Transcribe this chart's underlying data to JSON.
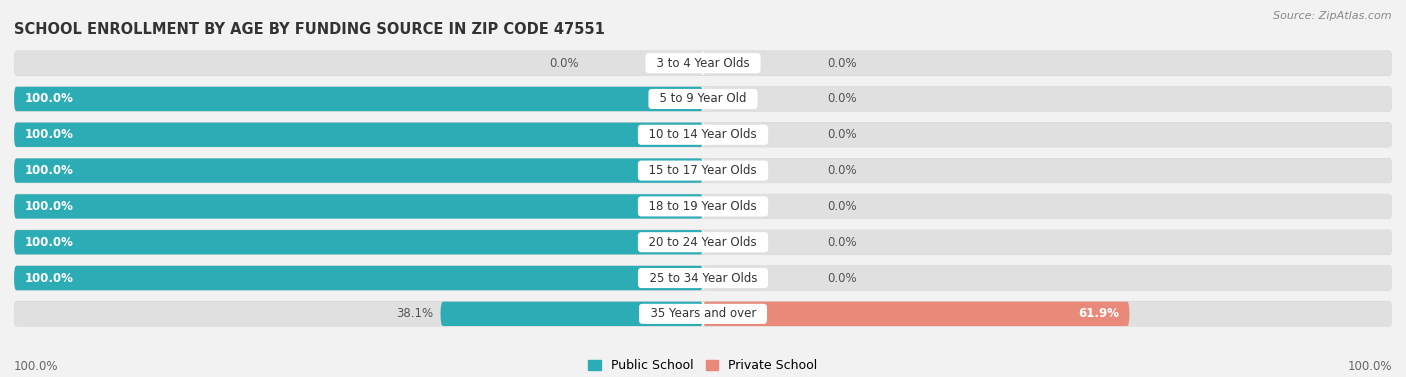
{
  "title": "SCHOOL ENROLLMENT BY AGE BY FUNDING SOURCE IN ZIP CODE 47551",
  "source": "Source: ZipAtlas.com",
  "categories": [
    "3 to 4 Year Olds",
    "5 to 9 Year Old",
    "10 to 14 Year Olds",
    "15 to 17 Year Olds",
    "18 to 19 Year Olds",
    "20 to 24 Year Olds",
    "25 to 34 Year Olds",
    "35 Years and over"
  ],
  "public_values": [
    0.0,
    100.0,
    100.0,
    100.0,
    100.0,
    100.0,
    100.0,
    38.1
  ],
  "private_values": [
    0.0,
    0.0,
    0.0,
    0.0,
    0.0,
    0.0,
    0.0,
    61.9
  ],
  "public_color": "#2CADB5",
  "private_color": "#E8897A",
  "public_color_light": "#7DD4D8",
  "bg_color": "#f2f2f2",
  "bar_bg_color": "#e0e0e0",
  "bar_row_bg": "#f8f8f8",
  "title_fontsize": 10.5,
  "source_fontsize": 8,
  "label_fontsize": 8.5,
  "cat_fontsize": 8.5,
  "axis_label_left": "100.0%",
  "axis_label_right": "100.0%",
  "legend_public": "Public School",
  "legend_private": "Private School"
}
